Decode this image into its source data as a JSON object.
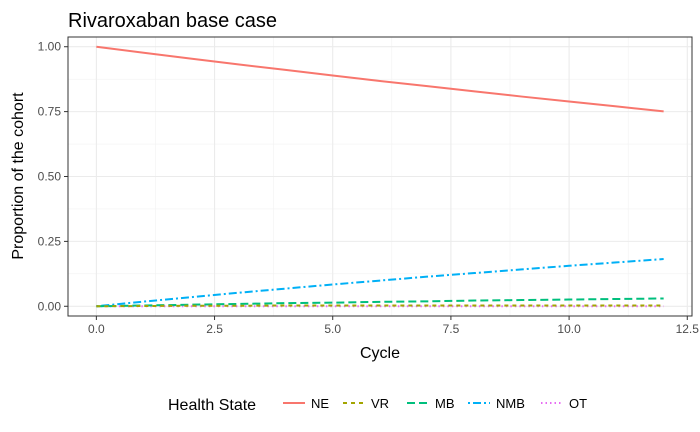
{
  "chart_data": {
    "type": "line",
    "title": "Rivaroxaban base case",
    "xlabel": "Cycle",
    "ylabel": "Proportion of the cohort",
    "xlim": [
      -0.6,
      12.6
    ],
    "ylim": [
      -0.0375,
      1.0375
    ],
    "xticks": [
      0,
      2.5,
      5,
      7.5,
      10,
      12.5
    ],
    "xtick_labels": [
      "0.0",
      "2.5",
      "5.0",
      "7.5",
      "10.0",
      "12.5"
    ],
    "yticks": [
      0,
      0.25,
      0.5,
      0.75,
      1.0
    ],
    "ytick_labels": [
      "0.00",
      "0.25",
      "0.50",
      "0.75",
      "1.00"
    ],
    "grid": true,
    "legend": {
      "title": "Health State",
      "position": "bottom"
    },
    "x": [
      0,
      1,
      2,
      3,
      4,
      5,
      6,
      7,
      8,
      9,
      10,
      11,
      12
    ],
    "series": [
      {
        "name": "NE",
        "color": "#F8766D",
        "dash": "solid",
        "values": [
          1.0,
          0.977,
          0.954,
          0.932,
          0.911,
          0.889,
          0.868,
          0.848,
          0.828,
          0.808,
          0.789,
          0.77,
          0.751
        ]
      },
      {
        "name": "VR",
        "color": "#A3A500",
        "dash": "dashed",
        "values": [
          0.0,
          0.001,
          0.002,
          0.002,
          0.003,
          0.003,
          0.003,
          0.003,
          0.003,
          0.003,
          0.003,
          0.003,
          0.003
        ]
      },
      {
        "name": "MB",
        "color": "#00BF7D",
        "dash": "longdash",
        "values": [
          0.0,
          0.003,
          0.006,
          0.009,
          0.012,
          0.014,
          0.017,
          0.019,
          0.022,
          0.024,
          0.026,
          0.028,
          0.03
        ]
      },
      {
        "name": "NMB",
        "color": "#00B0F6",
        "dash": "dotdash",
        "values": [
          0.0,
          0.018,
          0.035,
          0.052,
          0.068,
          0.084,
          0.099,
          0.114,
          0.128,
          0.142,
          0.156,
          0.169,
          0.182
        ]
      },
      {
        "name": "OT",
        "color": "#E76BF3",
        "dash": "dotted",
        "values": [
          0.0,
          0.0,
          0.0,
          0.0,
          0.0,
          0.0,
          0.0,
          0.0,
          0.0,
          0.0,
          0.0,
          0.0,
          0.0
        ]
      }
    ]
  }
}
